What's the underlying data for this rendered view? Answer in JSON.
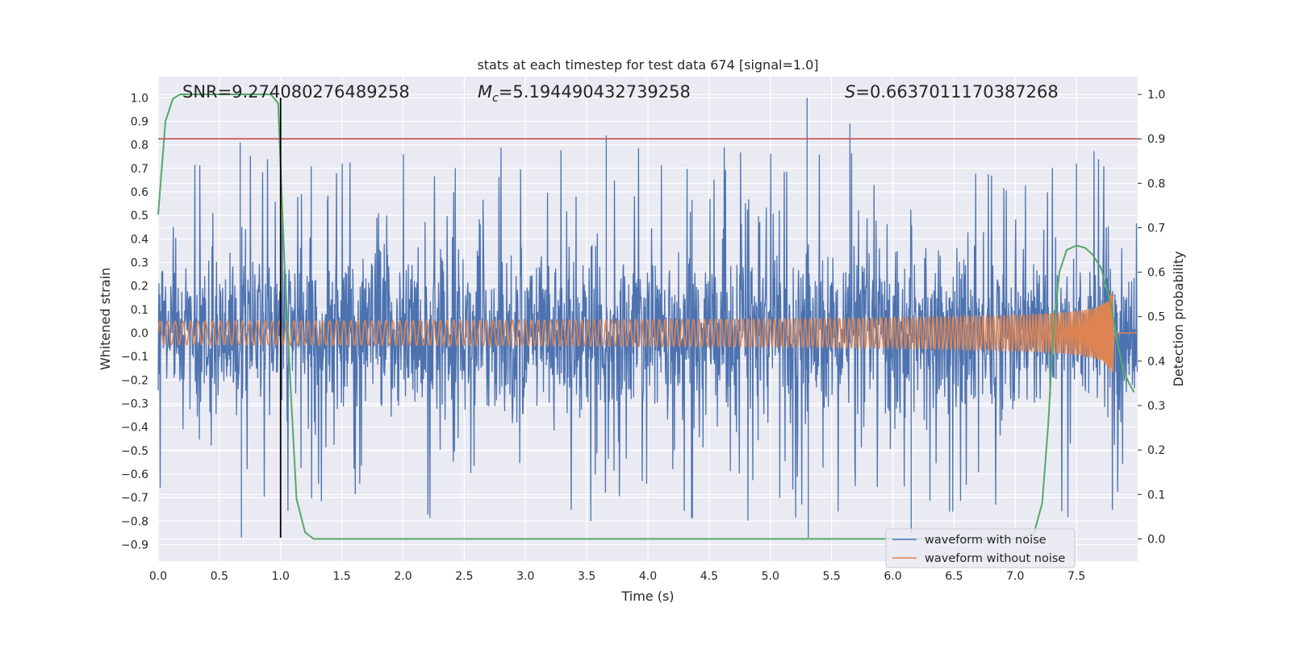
{
  "chart_data": {
    "type": "line",
    "title": "stats at each timestep for test data 674 [signal=1.0]",
    "xlabel": "Time (s)",
    "ylabel": "Whitened strain",
    "y2label": "Detection probability",
    "xlim": [
      0.0,
      8.0
    ],
    "ylim": [
      -0.97,
      1.09
    ],
    "y2lim": [
      -0.05,
      1.04
    ],
    "xticks": [
      "0.0",
      "0.5",
      "1.0",
      "1.5",
      "2.0",
      "2.5",
      "3.0",
      "3.5",
      "4.0",
      "4.5",
      "5.0",
      "5.5",
      "6.0",
      "6.5",
      "7.0",
      "7.5"
    ],
    "yticks": [
      "1.0",
      "0.9",
      "0.8",
      "0.7",
      "0.6",
      "0.5",
      "0.4",
      "0.3",
      "0.2",
      "0.1",
      "0.0",
      "−0.1",
      "−0.2",
      "−0.3",
      "−0.4",
      "−0.5",
      "−0.6",
      "−0.7",
      "−0.8",
      "−0.9"
    ],
    "y2ticks": [
      "1.0",
      "0.9",
      "0.8",
      "0.7",
      "0.6",
      "0.5",
      "0.4",
      "0.3",
      "0.2",
      "0.1",
      "0.0"
    ],
    "grid": true,
    "legend_position": "lower-right",
    "annotations": {
      "snr": "SNR=9.274080276489258",
      "mc_symbol": "M",
      "mc_sub": "c",
      "mc_value": "=5.194490432739258",
      "s_symbol": "S",
      "s_value": "=0.6637011170387268"
    },
    "series": [
      {
        "name": "waveform with noise",
        "color": "#4c72b0",
        "kind": "noise",
        "duration": 8.0,
        "clip": [
          -0.87,
          1.0
        ]
      },
      {
        "name": "waveform without noise",
        "color": "#dd8452",
        "kind": "chirp",
        "start_amp": 0.015,
        "end_amp": 0.17,
        "merger_time": 7.8
      },
      {
        "name": "detection probability",
        "color": "#55a868",
        "axis": "right",
        "x": [
          0.0,
          0.06,
          0.12,
          0.18,
          0.25,
          0.5,
          0.75,
          0.92,
          0.98,
          1.03,
          1.08,
          1.13,
          1.2,
          1.27,
          1.4,
          2.0,
          4.0,
          6.0,
          6.5,
          7.0,
          7.15,
          7.22,
          7.27,
          7.31,
          7.36,
          7.42,
          7.5,
          7.57,
          7.63,
          7.7,
          7.78,
          7.83,
          7.88,
          7.93,
          7.97
        ],
        "y": [
          0.73,
          0.94,
          0.99,
          1.0,
          1.0,
          1.0,
          1.0,
          1.0,
          0.98,
          0.63,
          0.35,
          0.09,
          0.015,
          0.0,
          0.0,
          0.0,
          0.0,
          0.0,
          0.0,
          0.0,
          0.01,
          0.08,
          0.26,
          0.46,
          0.6,
          0.65,
          0.66,
          0.655,
          0.64,
          0.61,
          0.53,
          0.45,
          0.38,
          0.35,
          0.33
        ]
      },
      {
        "name": "threshold",
        "color": "#c44e52",
        "axis": "right",
        "y": 0.9
      },
      {
        "name": "marker",
        "color": "#000000",
        "x": 1.0,
        "y_range": [
          -0.87,
          1.0
        ]
      }
    ]
  }
}
